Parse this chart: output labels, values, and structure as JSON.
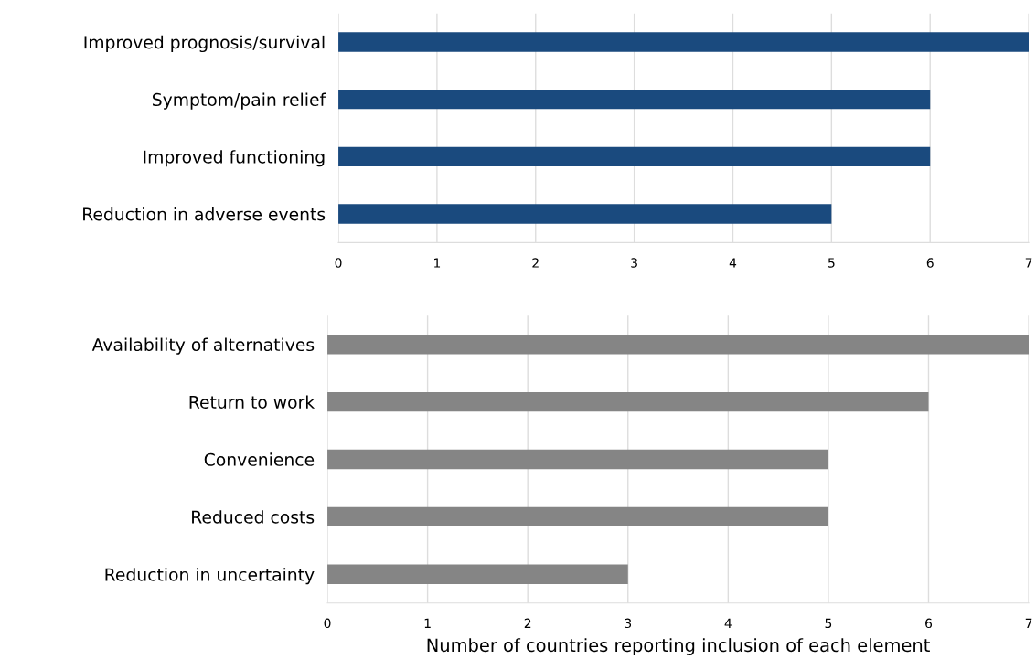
{
  "chart_data": [
    {
      "type": "bar",
      "orientation": "horizontal",
      "categories": [
        "Improved prognosis/survival",
        "Symptom/pain relief",
        "Improved functioning",
        "Reduction in adverse events"
      ],
      "values": [
        7,
        6,
        6,
        5
      ],
      "color": "#1a4a7e",
      "xlim": [
        0,
        7
      ],
      "xticks": [
        0,
        1,
        2,
        3,
        4,
        5,
        6,
        7
      ],
      "grid": "x",
      "legend": false
    },
    {
      "type": "bar",
      "orientation": "horizontal",
      "categories": [
        "Availability of alternatives",
        "Return to work",
        "Convenience",
        "Reduced costs",
        "Reduction in uncertainty"
      ],
      "values": [
        7,
        6,
        5,
        5,
        3
      ],
      "color": "#858585",
      "xlim": [
        0,
        7
      ],
      "xticks": [
        0,
        1,
        2,
        3,
        4,
        5,
        6,
        7
      ],
      "xlabel": "Number of countries reporting inclusion of each element",
      "grid": "x",
      "legend": false
    }
  ]
}
